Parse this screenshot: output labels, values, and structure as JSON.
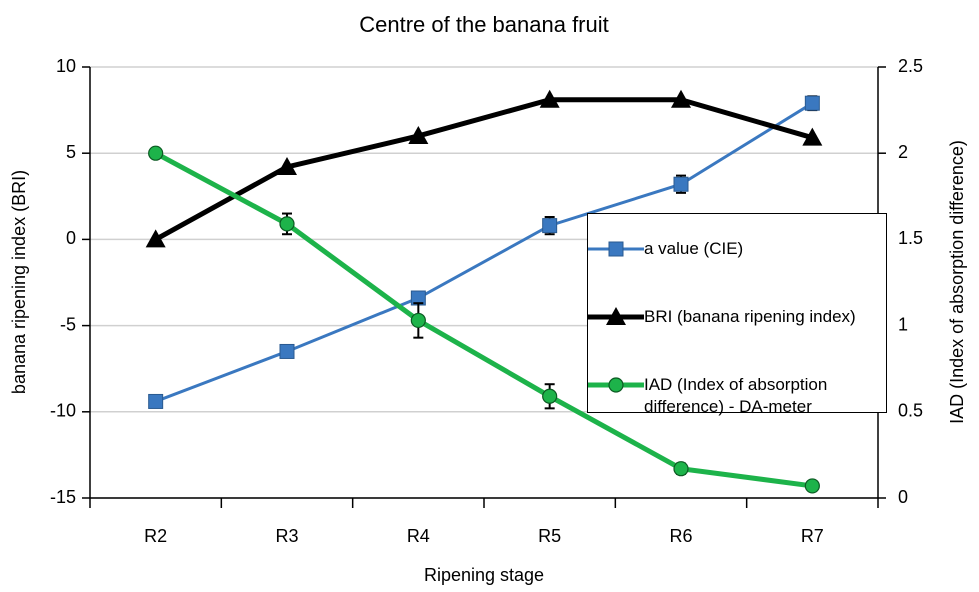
{
  "chart_data": {
    "type": "line",
    "title": "Centre of the banana fruit",
    "xlabel": "Ripening stage",
    "ylabel": "banana ripening index (BRI)",
    "y2label": "IAD (Index of absorption difference)",
    "categories": [
      "R2",
      "R3",
      "R4",
      "R5",
      "R6",
      "R7"
    ],
    "ylim": [
      -15,
      10
    ],
    "yticks": [
      -15,
      -10,
      -5,
      0,
      5,
      10
    ],
    "y2lim": [
      0,
      2.5
    ],
    "y2ticks": [
      0,
      0.5,
      1,
      1.5,
      2,
      2.5
    ],
    "grid": true,
    "legend": "right",
    "series": [
      {
        "name": "a value (CIE)",
        "color": "#3a78c0",
        "marker": "square",
        "values": [
          -9.4,
          -6.5,
          -3.4,
          0.8,
          3.2,
          7.9
        ],
        "errors": [
          null,
          null,
          0.3,
          0.5,
          0.5,
          0.4
        ]
      },
      {
        "name": "BRI (banana ripening index)",
        "color": "#000000",
        "marker": "triangle",
        "values": [
          0,
          4.2,
          6.0,
          8.1,
          8.1,
          5.9
        ]
      },
      {
        "name": "IAD (Index of absorption difference) - DA-meter",
        "color": "#1db34a",
        "marker": "circle",
        "axis": "y2",
        "values": [
          2.0,
          1.59,
          1.03,
          0.59,
          0.17,
          0.07
        ],
        "errors": [
          null,
          0.06,
          0.1,
          0.07,
          0.03,
          null
        ]
      }
    ]
  }
}
